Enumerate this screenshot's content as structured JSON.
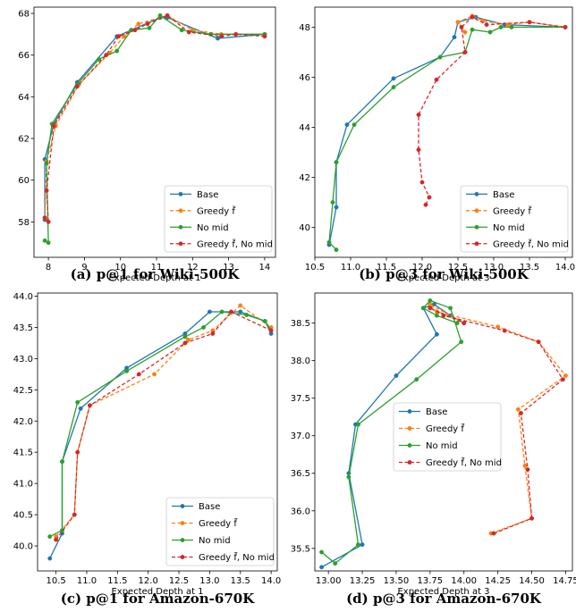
{
  "chart_data": [
    {
      "type": "line",
      "caption": "(a) p@1 for Wiki-500K",
      "xlabel": "Expected Depth at 1",
      "ylabel": "",
      "xlim": [
        7.6,
        14.3
      ],
      "ylim": [
        56.3,
        68.3
      ],
      "xticks": [
        8,
        9,
        10,
        11,
        12,
        13,
        14
      ],
      "yticks": [
        58,
        60,
        62,
        64,
        66,
        68
      ],
      "xtick_labels": [
        "8",
        "9",
        "10",
        "11",
        "12",
        "13",
        "14"
      ],
      "ytick_labels": [
        "58",
        "60",
        "62",
        "64",
        "66",
        "68"
      ],
      "grid": false,
      "legend_position": "lower-right",
      "series": [
        {
          "name": "Base",
          "color": "#1f77b4",
          "dashed": false,
          "x": [
            7.9,
            7.9,
            8.15,
            8.8,
            9.9,
            10.3,
            11.1,
            11.3,
            12.7,
            14.0
          ],
          "y": [
            58.1,
            61.0,
            62.7,
            64.7,
            66.9,
            67.2,
            67.8,
            67.8,
            66.8,
            67.0
          ]
        },
        {
          "name": "Greedy f̃",
          "color": "#ff7f0e",
          "dashed": true,
          "x": [
            7.9,
            7.95,
            8.2,
            8.85,
            9.7,
            10.1,
            10.5,
            11.3,
            12.0,
            12.8,
            13.2,
            14.0
          ],
          "y": [
            58.2,
            60.9,
            62.6,
            64.6,
            66.1,
            66.9,
            67.5,
            67.9,
            67.2,
            67.0,
            67.0,
            67.0
          ]
        },
        {
          "name": "No mid",
          "color": "#2ca02c",
          "dashed": false,
          "x": [
            7.9,
            8.0,
            7.95,
            8.1,
            8.8,
            9.4,
            9.9,
            10.3,
            10.8,
            11.1,
            11.7,
            12.5,
            14.0
          ],
          "y": [
            57.1,
            57.0,
            60.8,
            62.7,
            64.6,
            65.8,
            66.2,
            67.2,
            67.3,
            67.9,
            67.2,
            67.0,
            67.0
          ]
        },
        {
          "name": "Greedy f̃, No mid",
          "color": "#d62728",
          "dashed": true,
          "x": [
            7.9,
            8.0,
            7.95,
            8.15,
            8.8,
            9.6,
            9.95,
            10.4,
            10.75,
            11.3,
            11.9,
            12.8,
            13.2,
            14.0
          ],
          "y": [
            58.2,
            58.0,
            59.5,
            62.6,
            64.5,
            66.0,
            66.9,
            67.2,
            67.5,
            67.9,
            67.1,
            66.9,
            67.0,
            66.9
          ]
        }
      ]
    },
    {
      "type": "line",
      "caption": "(b) p@3 for Wiki-500K",
      "xlabel": "Expected Depth at 3",
      "ylabel": "",
      "xlim": [
        10.5,
        14.1
      ],
      "ylim": [
        38.8,
        48.8
      ],
      "xticks": [
        10.5,
        11.0,
        11.5,
        12.0,
        12.5,
        13.0,
        13.5,
        14.0
      ],
      "yticks": [
        40,
        42,
        44,
        46,
        48
      ],
      "xtick_labels": [
        "10.5",
        "11.0",
        "11.5",
        "12.0",
        "12.5",
        "13.0",
        "13.5",
        "14.0"
      ],
      "ytick_labels": [
        "40",
        "42",
        "44",
        "46",
        "48"
      ],
      "grid": false,
      "legend_position": "lower-right",
      "series": [
        {
          "name": "Base",
          "color": "#1f77b4",
          "dashed": false,
          "x": [
            10.7,
            10.8,
            10.8,
            10.95,
            11.6,
            12.25,
            12.45,
            12.5,
            12.75,
            13.15,
            14.0
          ],
          "y": [
            39.3,
            40.8,
            42.6,
            44.1,
            45.95,
            46.8,
            47.6,
            48.2,
            48.4,
            48.1,
            48.0
          ]
        },
        {
          "name": "Greedy f̃",
          "color": "#ff7f0e",
          "dashed": true,
          "x": [
            12.6,
            12.5,
            12.7,
            12.85,
            13.2,
            13.5,
            14.0
          ],
          "y": [
            47.8,
            48.2,
            48.45,
            48.25,
            48.1,
            48.2,
            48.0
          ]
        },
        {
          "name": "No mid",
          "color": "#2ca02c",
          "dashed": false,
          "x": [
            10.8,
            10.7,
            10.75,
            10.8,
            11.05,
            11.6,
            12.25,
            12.6,
            12.7,
            12.95,
            13.1,
            13.25,
            14.0
          ],
          "y": [
            39.1,
            39.4,
            41.0,
            42.6,
            44.1,
            45.6,
            46.8,
            47.0,
            47.9,
            47.8,
            48.0,
            48.0,
            48.0
          ]
        },
        {
          "name": "Greedy f̃, No mid",
          "color": "#d62728",
          "dashed": true,
          "x": [
            12.05,
            12.1,
            12.0,
            11.95,
            11.95,
            12.2,
            12.6,
            12.55,
            12.7,
            12.9,
            13.5,
            14.0
          ],
          "y": [
            40.9,
            41.2,
            41.8,
            43.1,
            44.5,
            45.9,
            47.0,
            48.0,
            48.4,
            48.1,
            48.2,
            48.0
          ]
        }
      ]
    },
    {
      "type": "line",
      "caption": "(c) p@1 for Amazon-670K",
      "xlabel": "Expected Depth at 1",
      "ylabel": "",
      "xlim": [
        10.2,
        14.1
      ],
      "ylim": [
        39.6,
        44.05
      ],
      "xticks": [
        10.5,
        11.0,
        11.5,
        12.0,
        12.5,
        13.0,
        13.5,
        14.0
      ],
      "yticks": [
        40.0,
        40.5,
        41.0,
        41.5,
        42.0,
        42.5,
        43.0,
        43.5,
        44.0
      ],
      "xtick_labels": [
        "10.5",
        "11.0",
        "11.5",
        "12.0",
        "12.5",
        "13.0",
        "13.5",
        "14.0"
      ],
      "ytick_labels": [
        "40.0",
        "40.5",
        "41.0",
        "41.5",
        "42.0",
        "42.5",
        "43.0",
        "43.5",
        "44.0"
      ],
      "grid": false,
      "legend_position": "lower-right",
      "series": [
        {
          "name": "Base",
          "color": "#1f77b4",
          "dashed": false,
          "x": [
            10.4,
            10.6,
            10.6,
            10.9,
            11.65,
            12.6,
            13.0,
            13.5,
            13.9,
            14.0
          ],
          "y": [
            39.8,
            40.2,
            41.35,
            42.2,
            42.85,
            43.4,
            43.75,
            43.75,
            43.6,
            43.4
          ]
        },
        {
          "name": "Greedy f̃",
          "color": "#ff7f0e",
          "dashed": true,
          "x": [
            10.5,
            10.8,
            10.85,
            11.05,
            12.1,
            12.65,
            13.05,
            13.5,
            14.0
          ],
          "y": [
            40.15,
            40.5,
            41.5,
            42.25,
            42.75,
            43.3,
            43.45,
            43.85,
            43.5
          ]
        },
        {
          "name": "No mid",
          "color": "#2ca02c",
          "dashed": false,
          "x": [
            10.4,
            10.6,
            10.6,
            10.85,
            11.65,
            12.6,
            12.9,
            13.2,
            13.6,
            13.9,
            14.0
          ],
          "y": [
            40.15,
            40.25,
            41.35,
            42.3,
            42.8,
            43.35,
            43.5,
            43.75,
            43.7,
            43.6,
            43.45
          ]
        },
        {
          "name": "Greedy f̃, No mid",
          "color": "#d62728",
          "dashed": true,
          "x": [
            10.5,
            10.8,
            10.85,
            11.05,
            11.85,
            12.6,
            13.05,
            13.35,
            14.0
          ],
          "y": [
            40.1,
            40.5,
            41.5,
            42.25,
            42.75,
            43.25,
            43.4,
            43.75,
            43.45
          ]
        }
      ]
    },
    {
      "type": "line",
      "caption": "(d) p@3 for Amazon-670K",
      "xlabel": "Expected Depth at 3",
      "ylabel": "",
      "xlim": [
        12.9,
        14.8
      ],
      "ylim": [
        35.2,
        38.9
      ],
      "xticks": [
        13.0,
        13.25,
        13.5,
        13.75,
        14.0,
        14.25,
        14.5,
        14.75
      ],
      "yticks": [
        35.5,
        36.0,
        36.5,
        37.0,
        37.5,
        38.0,
        38.5
      ],
      "xtick_labels": [
        "13.00",
        "13.25",
        "13.50",
        "13.75",
        "14.00",
        "14.25",
        "14.50",
        "14.75"
      ],
      "ytick_labels": [
        "35.5",
        "36.0",
        "36.5",
        "37.0",
        "37.5",
        "38.0",
        "38.5"
      ],
      "grid": false,
      "legend_position": "center-left",
      "series": [
        {
          "name": "Base",
          "color": "#1f77b4",
          "dashed": false,
          "x": [
            12.95,
            13.25,
            13.15,
            13.2,
            13.5,
            13.8,
            13.7,
            13.78,
            13.9,
            14.0
          ],
          "y": [
            35.25,
            35.55,
            36.5,
            37.15,
            37.8,
            38.35,
            38.7,
            38.75,
            38.6,
            38.5
          ]
        },
        {
          "name": "Greedy f̃",
          "color": "#ff7f0e",
          "dashed": true,
          "x": [
            14.2,
            14.5,
            14.45,
            14.4,
            14.75,
            14.55,
            14.25,
            13.8,
            13.75,
            14.0
          ],
          "y": [
            35.7,
            35.9,
            36.6,
            37.35,
            37.8,
            38.25,
            38.45,
            38.65,
            38.75,
            38.5
          ]
        },
        {
          "name": "No mid",
          "color": "#2ca02c",
          "dashed": false,
          "x": [
            12.95,
            13.05,
            13.22,
            13.15,
            13.22,
            13.65,
            13.98,
            13.9,
            13.75,
            13.7,
            13.8,
            13.95
          ],
          "y": [
            35.45,
            35.3,
            35.55,
            36.45,
            37.15,
            37.75,
            38.25,
            38.7,
            38.8,
            38.7,
            38.6,
            38.5
          ]
        },
        {
          "name": "Greedy f̃, No mid",
          "color": "#d62728",
          "dashed": true,
          "x": [
            14.22,
            14.5,
            14.47,
            14.42,
            14.73,
            14.55,
            14.3,
            13.85,
            13.75,
            14.0
          ],
          "y": [
            35.7,
            35.9,
            36.55,
            37.3,
            37.75,
            38.25,
            38.4,
            38.6,
            38.7,
            38.5
          ]
        }
      ]
    }
  ]
}
